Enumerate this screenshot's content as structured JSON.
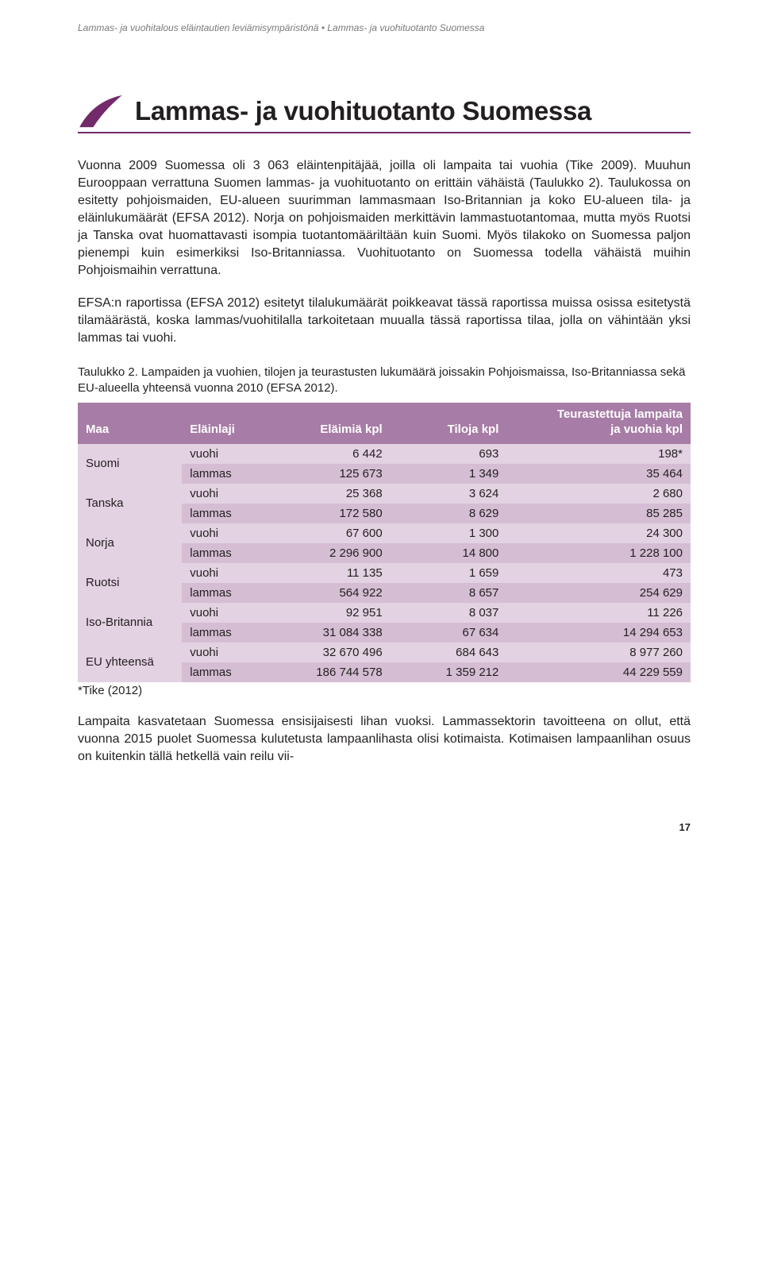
{
  "header": {
    "breadcrumb_1": "Lammas- ja vuohitalous eläintautien leviämisympäristönä",
    "breadcrumb_sep": "•",
    "breadcrumb_2": "Lammas- ja vuohituotanto Suomessa"
  },
  "title": "Lammas- ja vuohituotanto Suomessa",
  "paragraphs": {
    "p1": "Vuonna 2009 Suomessa oli 3 063 eläintenpitäjää, joilla oli lampaita tai vuohia (Tike 2009). Muuhun Eurooppaan verrattuna Suomen lammas- ja vuohituotanto on erittäin vähäistä (Taulukko 2). Taulukossa on esitetty pohjoismaiden, EU-alueen suurimman lammasmaan Iso-Britannian ja koko EU-alueen tila- ja eläinlukumäärät (EFSA 2012). Norja on pohjoismaiden merkittävin lammastuotantomaa, mutta myös Ruotsi ja Tanska ovat huomattavasti isompia tuotantomääriltään kuin Suomi. Myös tilakoko on Suomessa paljon pienempi kuin esimerkiksi Iso-Britanniassa. Vuohituotanto on Suomessa todella vähäistä muihin Pohjoismaihin verrattuna.",
    "p2": "EFSA:n raportissa (EFSA 2012) esitetyt tilalukumäärät poikkeavat tässä raportissa muissa osissa esitetystä tilamäärästä, koska lammas/vuohitilalla tarkoitetaan muualla tässä raportissa tilaa, jolla on vähintään yksi lammas tai vuohi.",
    "p3": "Lampaita kasvatetaan Suomessa ensisijaisesti lihan vuoksi. Lammassektorin tavoitteena on ollut, että vuonna 2015 puolet Suomessa kulutetusta lampaanlihasta olisi kotimaista. Kotimaisen lampaanlihan osuus on kuitenkin tällä hetkellä vain reilu vii-"
  },
  "table": {
    "caption": "Taulukko 2. Lampaiden ja vuohien, tilojen ja teurastusten lukumäärä joissakin Pohjoismaissa, Iso-Britanniassa sekä EU-alueella yhteensä vuonna 2010 (EFSA 2012).",
    "headers": {
      "maa": "Maa",
      "laji": "Eläinlaji",
      "elaimia": "Eläimiä kpl",
      "tiloja": "Tiloja kpl",
      "teurastettuja_l1": "Teurastettuja lampaita",
      "teurastettuja_l2": "ja vuohia kpl"
    },
    "rows": [
      {
        "maa": "Suomi",
        "rows": [
          {
            "laji": "vuohi",
            "elaimia": "6 442",
            "tiloja": "693",
            "teur": "198*",
            "cls": "light"
          },
          {
            "laji": "lammas",
            "elaimia": "125 673",
            "tiloja": "1 349",
            "teur": "35 464",
            "cls": "dark"
          }
        ]
      },
      {
        "maa": "Tanska",
        "rows": [
          {
            "laji": "vuohi",
            "elaimia": "25 368",
            "tiloja": "3 624",
            "teur": "2 680",
            "cls": "light"
          },
          {
            "laji": "lammas",
            "elaimia": "172 580",
            "tiloja": "8 629",
            "teur": "85 285",
            "cls": "dark"
          }
        ]
      },
      {
        "maa": "Norja",
        "rows": [
          {
            "laji": "vuohi",
            "elaimia": "67 600",
            "tiloja": "1 300",
            "teur": "24 300",
            "cls": "light"
          },
          {
            "laji": "lammas",
            "elaimia": "2 296 900",
            "tiloja": "14 800",
            "teur": "1 228 100",
            "cls": "dark"
          }
        ]
      },
      {
        "maa": "Ruotsi",
        "rows": [
          {
            "laji": "vuohi",
            "elaimia": "11 135",
            "tiloja": "1 659",
            "teur": "473",
            "cls": "light"
          },
          {
            "laji": "lammas",
            "elaimia": "564 922",
            "tiloja": "8 657",
            "teur": "254 629",
            "cls": "dark"
          }
        ]
      },
      {
        "maa": "Iso-Britannia",
        "rows": [
          {
            "laji": "vuohi",
            "elaimia": "92 951",
            "tiloja": "8 037",
            "teur": "11 226",
            "cls": "light"
          },
          {
            "laji": "lammas",
            "elaimia": "31 084 338",
            "tiloja": "67 634",
            "teur": "14 294 653",
            "cls": "dark"
          }
        ]
      },
      {
        "maa": "EU yhteensä",
        "rows": [
          {
            "laji": "vuohi",
            "elaimia": "32 670 496",
            "tiloja": "684 643",
            "teur": "8 977 260",
            "cls": "light"
          },
          {
            "laji": "lammas",
            "elaimia": "186 744 578",
            "tiloja": "1 359 212",
            "teur": "44 229 559",
            "cls": "dark"
          }
        ]
      }
    ],
    "footnote": "*Tike (2012)"
  },
  "colors": {
    "accent": "#722a6a",
    "header_bg": "#a77ca6",
    "row_light": "#e3d2e2",
    "row_dark": "#d5bdd4"
  },
  "page_number": "17"
}
